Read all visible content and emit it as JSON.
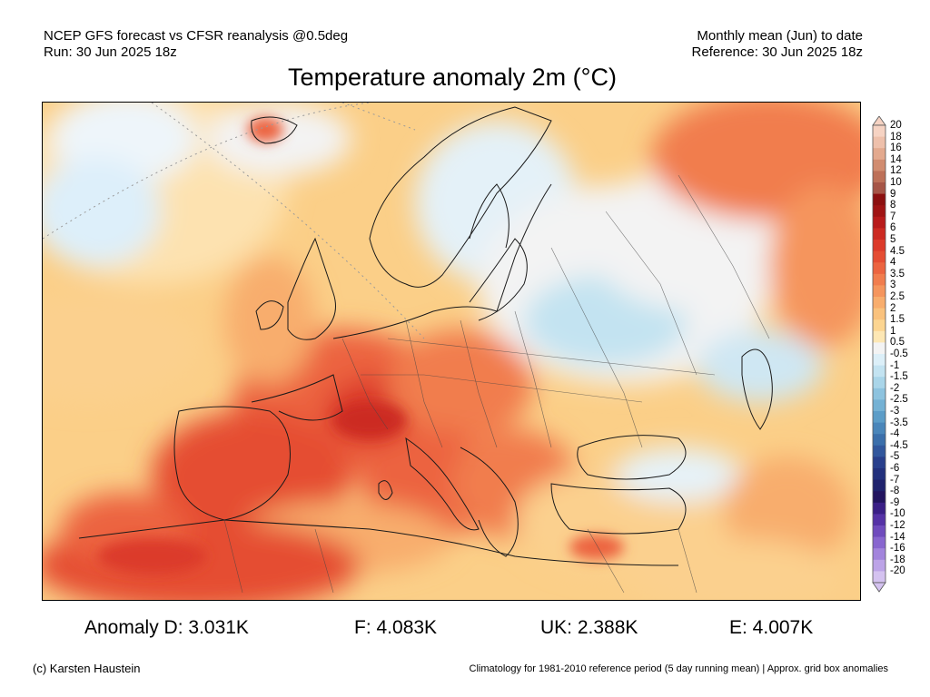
{
  "header": {
    "left_line1": "NCEP GFS forecast vs CFSR reanalysis @0.5deg",
    "left_line2": "Run: 30 Jun 2025 18z",
    "right_line1": "Monthly mean (Jun) to date",
    "right_line2": "Reference: 30 Jun 2025 18z"
  },
  "title": "Temperature anomaly 2m (°C)",
  "colorbar": {
    "labels": [
      "20",
      "18",
      "16",
      "14",
      "12",
      "10",
      "9",
      "8",
      "7",
      "6",
      "5",
      "4.5",
      "4",
      "3.5",
      "3",
      "2.5",
      "2",
      "1.5",
      "1",
      "0.5",
      "-0.5",
      "-1",
      "-1.5",
      "-2",
      "-2.5",
      "-3",
      "-3.5",
      "-4",
      "-4.5",
      "-5",
      "-6",
      "-7",
      "-8",
      "-9",
      "-10",
      "-12",
      "-14",
      "-16",
      "-18",
      "-20"
    ],
    "colors": [
      "#f6d3c3",
      "#eec0ab",
      "#e3a98e",
      "#d18c70",
      "#bd7058",
      "#a65547",
      "#8c1010",
      "#a01414",
      "#b81b1b",
      "#cc2a22",
      "#dc3a2a",
      "#e54d33",
      "#ec6440",
      "#f17d4e",
      "#f5955d",
      "#f8ad6d",
      "#fac27d",
      "#fcd591",
      "#fde7b4",
      "#f3f3f3",
      "#dceff8",
      "#c3e3f1",
      "#a9d5e9",
      "#8dc3df",
      "#74b1d4",
      "#5c9dc8",
      "#4a86ba",
      "#3b6fab",
      "#31579d",
      "#283f8c",
      "#22307d",
      "#1f226d",
      "#22145f",
      "#3a1f86",
      "#5532a6",
      "#6f4bbd",
      "#8866cf",
      "#a284dc",
      "#bca3e7",
      "#d4c2f0"
    ]
  },
  "stats": {
    "anomaly_d": "Anomaly D: 3.031K",
    "f": "F: 4.083K",
    "uk": "UK: 2.388K",
    "e": "E: 4.007K"
  },
  "footer": {
    "credit": "(c) Karsten Haustein",
    "note": "Climatology for 1981-2010 reference period (5 day running mean) | Approx. grid box anomalies"
  }
}
